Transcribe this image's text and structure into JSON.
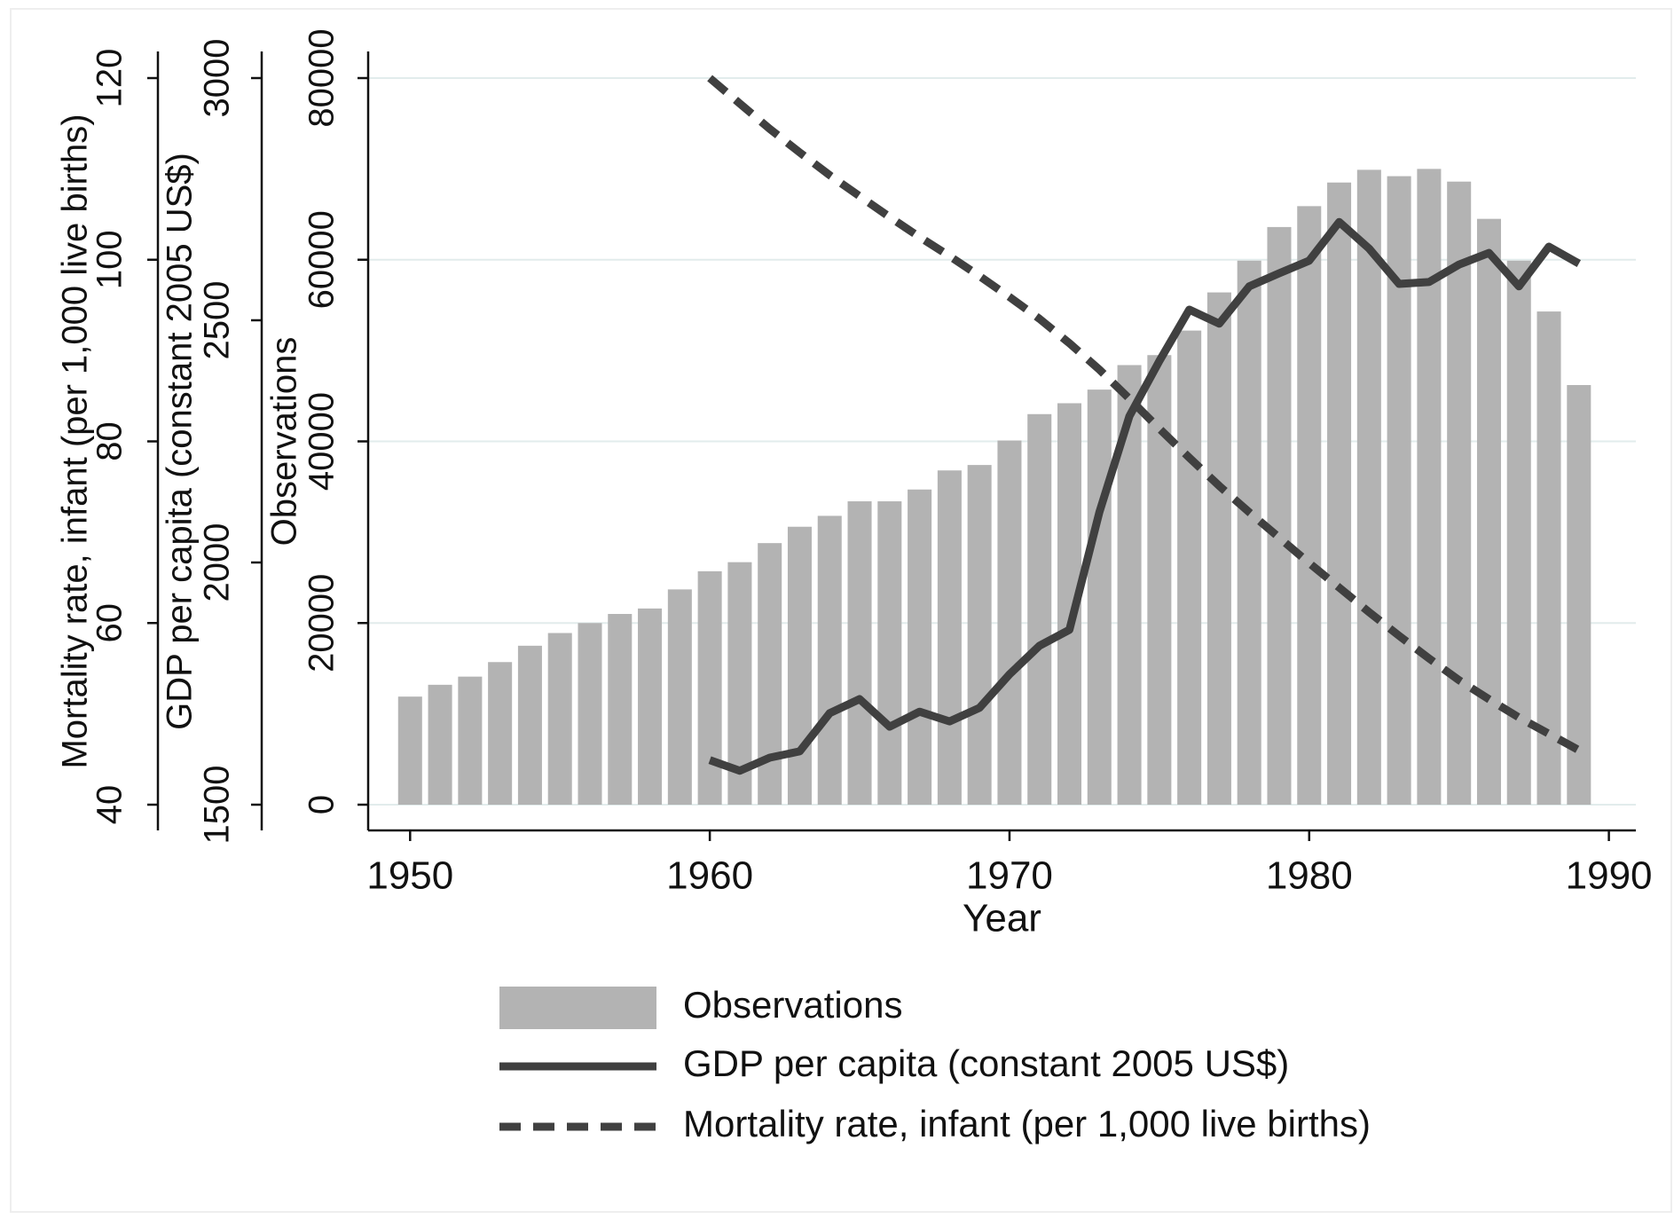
{
  "chart_data": {
    "type": "combo",
    "xlabel": "Year",
    "ylabel": "Observations",
    "y2label": "GDP per capita (constant 2005 US$)",
    "y3label": "Mortality rate, infant (per 1,000 live births)",
    "x": [
      1950,
      1951,
      1952,
      1953,
      1954,
      1955,
      1956,
      1957,
      1958,
      1959,
      1960,
      1961,
      1962,
      1963,
      1964,
      1965,
      1966,
      1967,
      1968,
      1969,
      1970,
      1971,
      1972,
      1973,
      1974,
      1975,
      1976,
      1977,
      1978,
      1979,
      1980,
      1981,
      1982,
      1983,
      1984,
      1985,
      1986,
      1987,
      1988,
      1989
    ],
    "xlim": [
      1948.6,
      1990.9
    ],
    "xticks": [
      1950,
      1960,
      1970,
      1980,
      1990
    ],
    "ylim": [
      0,
      80000
    ],
    "yticks": [
      0,
      20000,
      40000,
      60000,
      80000
    ],
    "y2lim": [
      1500,
      3000
    ],
    "y2ticks": [
      1500,
      2000,
      2500,
      3000
    ],
    "y3lim": [
      40,
      120
    ],
    "y3ticks": [
      40,
      60,
      80,
      100,
      120
    ],
    "grid": true,
    "series": [
      {
        "name": "Observations",
        "type": "bar",
        "color": "#b3b3b3",
        "values": [
          11900,
          13200,
          14100,
          15700,
          17500,
          18900,
          20000,
          21000,
          21600,
          23700,
          25700,
          26700,
          28800,
          30600,
          31800,
          33400,
          33400,
          34700,
          36800,
          37400,
          40100,
          43000,
          44200,
          45700,
          48400,
          49500,
          52200,
          56400,
          59900,
          63600,
          65900,
          68500,
          69900,
          69200,
          70000,
          68600,
          64500,
          59900,
          54300,
          46200
        ]
      },
      {
        "name": "GDP per capita (constant 2005 US$)",
        "type": "line",
        "axis": "y2",
        "color": "#404040",
        "values": [
          null,
          null,
          null,
          null,
          null,
          null,
          null,
          null,
          null,
          null,
          1592,
          1570,
          1597,
          1610,
          1689,
          1718,
          1661,
          1692,
          1672,
          1700,
          1769,
          1828,
          1861,
          2104,
          2302,
          2416,
          2522,
          2493,
          2570,
          2597,
          2623,
          2703,
          2648,
          2575,
          2579,
          2615,
          2639,
          2570,
          2652,
          2617
        ]
      },
      {
        "name": "Mortality rate, infant (per 1,000 live births)",
        "type": "line",
        "axis": "y3",
        "dashed": true,
        "color": "#404040",
        "values": [
          null,
          null,
          null,
          null,
          null,
          null,
          null,
          null,
          null,
          null,
          120,
          117.2,
          114.4,
          111.8,
          109.3,
          107,
          104.7,
          102.5,
          100.4,
          98.2,
          95.9,
          93.5,
          90.8,
          87.9,
          84.7,
          81.4,
          78.2,
          75.1,
          72.2,
          69.4,
          66.6,
          63.9,
          61.2,
          58.6,
          56.1,
          53.7,
          51.6,
          49.6,
          47.8,
          46
        ]
      }
    ]
  }
}
